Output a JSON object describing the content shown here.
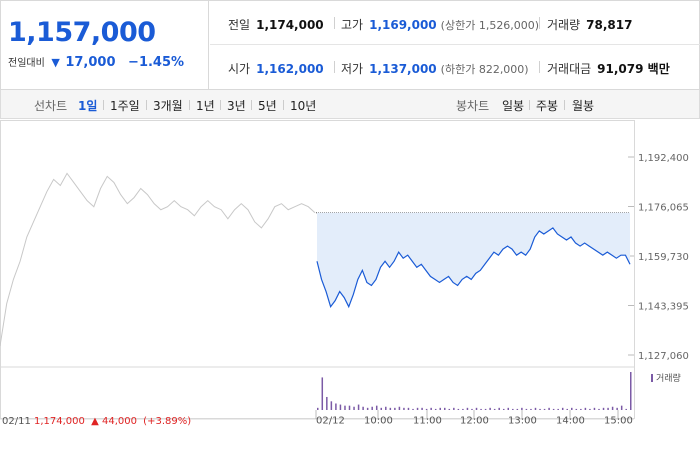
{
  "quote": {
    "price": "1,157,000",
    "change_label": "전일대비",
    "change_arrow": "▼",
    "change_value": "17,000",
    "change_pct": "−1.45%"
  },
  "stats": {
    "row1": [
      {
        "label": "전일",
        "value": "1,174,000",
        "color": "#111111"
      },
      {
        "label": "고가",
        "value": "1,169,000",
        "sub": "(상한가 1,526,000)",
        "color": "#1a5bd6"
      },
      {
        "label": "거래량",
        "value": "78,817",
        "color": "#111111"
      }
    ],
    "row2": [
      {
        "label": "시가",
        "value": "1,162,000",
        "color": "#1a5bd6"
      },
      {
        "label": "저가",
        "value": "1,137,000",
        "sub": "(하한가 822,000)",
        "color": "#1a5bd6"
      },
      {
        "label": "거래대금",
        "value": "91,079 백만",
        "color": "#111111"
      }
    ]
  },
  "tabs": {
    "line_label": "선차트",
    "line_tabs": [
      "1일",
      "1주일",
      "3개월",
      "1년",
      "3년",
      "5년",
      "10년"
    ],
    "line_active": "1일",
    "candle_label": "봉차트",
    "candle_tabs": [
      "일봉",
      "주봉",
      "월봉"
    ]
  },
  "chart_data": {
    "type": "line",
    "y_ticks": [
      "1,192,400",
      "1,176,065",
      "1,159,730",
      "1,143,395",
      "1,127,060"
    ],
    "ylim": [
      1127060,
      1192400
    ],
    "x_ticks": [
      "02/12",
      "10:00",
      "11:00",
      "12:00",
      "13:00",
      "14:00",
      "15:00"
    ],
    "previous_day": {
      "date": "02/11",
      "close": "1,174,000",
      "change_arrow": "▲",
      "change": "44,000",
      "change_pct": "(+3.89%)",
      "values": [
        1130000,
        1144000,
        1152000,
        1158000,
        1166000,
        1171000,
        1176000,
        1181000,
        1185000,
        1183000,
        1187000,
        1184000,
        1181000,
        1178000,
        1176000,
        1182000,
        1186000,
        1184000,
        1180000,
        1177000,
        1179000,
        1182000,
        1180000,
        1177000,
        1175000,
        1176000,
        1178000,
        1176000,
        1175000,
        1173000,
        1176000,
        1178000,
        1176000,
        1175000,
        1172000,
        1175000,
        1177000,
        1175000,
        1171000,
        1169000,
        1172000,
        1176000,
        1177000,
        1175000,
        1176000,
        1177000,
        1176000,
        1174000
      ]
    },
    "reference_price": 1174000,
    "intraday_values": [
      1158000,
      1152000,
      1148000,
      1143000,
      1145000,
      1148000,
      1146000,
      1143000,
      1147000,
      1152000,
      1155000,
      1151000,
      1150000,
      1152000,
      1156000,
      1158000,
      1156000,
      1158000,
      1161000,
      1159000,
      1160000,
      1158000,
      1156000,
      1157000,
      1155000,
      1153000,
      1152000,
      1151000,
      1152000,
      1153000,
      1151000,
      1150000,
      1152000,
      1153000,
      1152000,
      1154000,
      1155000,
      1157000,
      1159000,
      1161000,
      1160000,
      1162000,
      1163000,
      1162000,
      1160000,
      1161000,
      1160000,
      1162000,
      1166000,
      1168000,
      1167000,
      1168000,
      1169000,
      1167000,
      1166000,
      1165000,
      1166000,
      1164000,
      1163000,
      1164000,
      1163000,
      1162000,
      1161000,
      1160000,
      1161000,
      1160000,
      1159000,
      1160000,
      1160000,
      1157000
    ],
    "volume_legend": "거래량",
    "volume_values": [
      2,
      30,
      12,
      8,
      6,
      5,
      4,
      4,
      3,
      5,
      3,
      2,
      3,
      4,
      2,
      3,
      2,
      2,
      3,
      2,
      2,
      1,
      2,
      2,
      1,
      2,
      1,
      2,
      2,
      1,
      2,
      1,
      1,
      2,
      1,
      2,
      1,
      1,
      2,
      1,
      2,
      1,
      2,
      1,
      1,
      2,
      1,
      1,
      2,
      1,
      1,
      2,
      1,
      1,
      2,
      1,
      2,
      1,
      1,
      2,
      1,
      2,
      1,
      2,
      2,
      3,
      2,
      4,
      1,
      35
    ],
    "colors": {
      "prev_line": "#c8c8c8",
      "intraday_line": "#1a5bd6",
      "fill": "#e3edfa",
      "volume": "#7b5aa6",
      "up": "#e02424"
    }
  }
}
